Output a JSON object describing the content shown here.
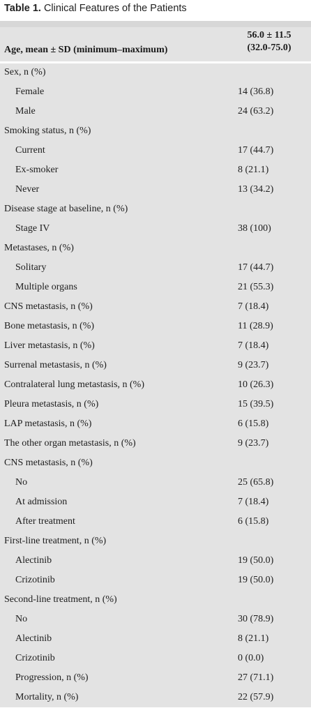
{
  "caption": {
    "label": "Table 1.",
    "title": "Clinical Features of the Patients"
  },
  "header": {
    "label": "Age, mean ± SD (minimum–maximum)",
    "value_line1": "56.0 ± 11.5",
    "value_line2": "(32.0-75.0)"
  },
  "rows": [
    {
      "label": "Sex, n (%)",
      "value": "",
      "indent": 0
    },
    {
      "label": "Female",
      "value": "14 (36.8)",
      "indent": 1
    },
    {
      "label": "Male",
      "value": "24 (63.2)",
      "indent": 1
    },
    {
      "label": "Smoking status, n (%)",
      "value": "",
      "indent": 0
    },
    {
      "label": "Current",
      "value": "17 (44.7)",
      "indent": 1
    },
    {
      "label": "Ex-smoker",
      "value": "8 (21.1)",
      "indent": 1
    },
    {
      "label": "Never",
      "value": "13 (34.2)",
      "indent": 1
    },
    {
      "label": "Disease stage at baseline, n (%)",
      "value": "",
      "indent": 0
    },
    {
      "label": "Stage IV",
      "value": "38 (100)",
      "indent": 1
    },
    {
      "label": "Metastases, n (%)",
      "value": "",
      "indent": 0
    },
    {
      "label": "Solitary",
      "value": "17 (44.7)",
      "indent": 1
    },
    {
      "label": "Multiple organs",
      "value": "21 (55.3)",
      "indent": 1
    },
    {
      "label": "CNS metastasis, n (%)",
      "value": "7 (18.4)",
      "indent": 0
    },
    {
      "label": "Bone metastasis, n (%)",
      "value": "11 (28.9)",
      "indent": 0
    },
    {
      "label": "Liver metastasis, n (%)",
      "value": "7 (18.4)",
      "indent": 0
    },
    {
      "label": "Surrenal metastasis, n (%)",
      "value": "9 (23.7)",
      "indent": 0
    },
    {
      "label": "Contralateral lung metastasis, n (%)",
      "value": "10 (26.3)",
      "indent": 0
    },
    {
      "label": "Pleura metastasis, n (%)",
      "value": "15 (39.5)",
      "indent": 0
    },
    {
      "label": "LAP metastasis, n (%)",
      "value": "6 (15.8)",
      "indent": 0
    },
    {
      "label": "The other organ metastasis, n (%)",
      "value": "9 (23.7)",
      "indent": 0
    },
    {
      "label": "CNS metastasis, n (%)",
      "value": "",
      "indent": 0
    },
    {
      "label": "No",
      "value": "25 (65.8)",
      "indent": 1
    },
    {
      "label": "At admission",
      "value": "7 (18.4)",
      "indent": 1
    },
    {
      "label": "After treatment",
      "value": "6 (15.8)",
      "indent": 1
    },
    {
      "label": "First-line treatment, n (%)",
      "value": "",
      "indent": 0
    },
    {
      "label": "Alectinib",
      "value": "19 (50.0)",
      "indent": 1
    },
    {
      "label": "Crizotinib",
      "value": "19 (50.0)",
      "indent": 1
    },
    {
      "label": "Second-line treatment, n (%)",
      "value": "",
      "indent": 0
    },
    {
      "label": "No",
      "value": "30 (78.9)",
      "indent": 1
    },
    {
      "label": "Alectinib",
      "value": "8 (21.1)",
      "indent": 1
    },
    {
      "label": "Crizotinib",
      "value": "0 (0.0)",
      "indent": 1
    },
    {
      "label": "Progression, n (%)",
      "value": "27 (71.1)",
      "indent": 1
    },
    {
      "label": "Mortality, n (%)",
      "value": "22 (57.9)",
      "indent": 1
    }
  ]
}
